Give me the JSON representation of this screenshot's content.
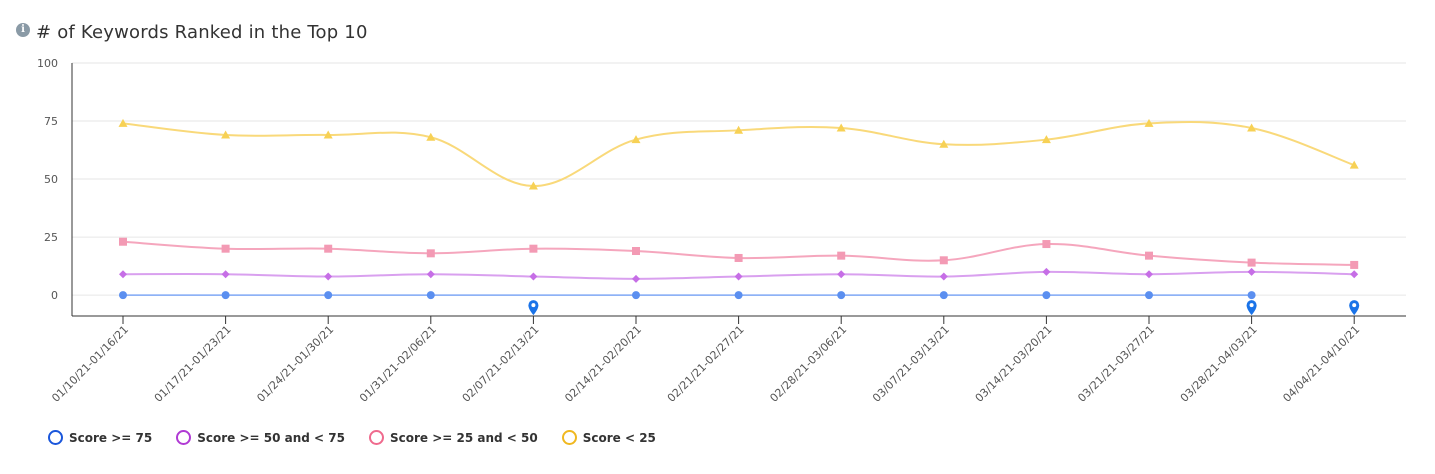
{
  "header": {
    "info_icon": "info-icon",
    "title": "# of Keywords Ranked in the Top 10"
  },
  "chart_data": {
    "type": "line",
    "title": "# of Keywords Ranked in the Top 10",
    "xlabel": "",
    "ylabel": "",
    "ylim": [
      -9,
      100
    ],
    "yticks": [
      0,
      25,
      50,
      75,
      100
    ],
    "grid": true,
    "legend_position": "bottom-left",
    "categories": [
      "01/10/21-01/16/21",
      "01/17/21-01/23/21",
      "01/24/21-01/30/21",
      "01/31/21-02/06/21",
      "02/07/21-02/13/21",
      "02/14/21-02/20/21",
      "02/21/21-02/27/21",
      "02/28/21-03/06/21",
      "03/07/21-03/13/21",
      "03/14/21-03/20/21",
      "03/21/21-03/27/21",
      "03/28/21-04/03/21",
      "04/04/21-04/10/21"
    ],
    "series": [
      {
        "name": "Score >= 75",
        "color": "#1a56db",
        "line_color": "#7fa8f5",
        "marker": "circle",
        "values": [
          0,
          0,
          0,
          0,
          null,
          0,
          0,
          0,
          0,
          0,
          0,
          0,
          null
        ]
      },
      {
        "name": "Score >= 50 and < 75",
        "color": "#b03ad4",
        "line_color": "#d9a0ef",
        "marker": "diamond",
        "values": [
          9,
          9,
          8,
          9,
          8,
          7,
          8,
          9,
          8,
          10,
          9,
          10,
          9
        ]
      },
      {
        "name": "Score >= 25 and < 50",
        "color": "#ef6a8d",
        "line_color": "#f5a6bd",
        "marker": "square",
        "values": [
          23,
          20,
          20,
          18,
          20,
          19,
          16,
          17,
          15,
          22,
          17,
          14,
          13
        ]
      },
      {
        "name": "Score < 25",
        "color": "#f0b820",
        "line_color": "#f9d97a",
        "marker": "triangle",
        "values": [
          74,
          69,
          69,
          68,
          47,
          67,
          71,
          72,
          65,
          67,
          74,
          72,
          56
        ]
      }
    ],
    "flags": {
      "icon": "map-pin-icon",
      "color": "#1a73e8",
      "categories": [
        "02/07/21-02/13/21",
        "03/28/21-04/03/21",
        "04/04/21-04/10/21"
      ]
    }
  },
  "legend": [
    {
      "label": "Score >= 75",
      "color": "#1a56db"
    },
    {
      "label": "Score >= 50 and < 75",
      "color": "#b03ad4"
    },
    {
      "label": "Score >= 25 and < 50",
      "color": "#ef6a8d"
    },
    {
      "label": "Score < 25",
      "color": "#f0b820"
    }
  ]
}
